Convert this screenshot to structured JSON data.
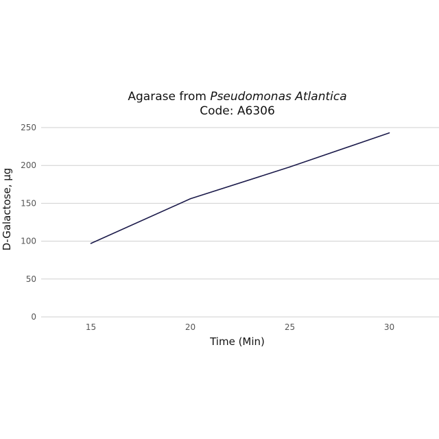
{
  "chart_data": {
    "type": "line",
    "title_line1_prefix": "Agarase from ",
    "title_line1_italic": "Pseudomonas Atlantica",
    "title_line2": "Code: A6306",
    "xlabel": "Time (Min)",
    "ylabel": "D-Galactose, µg",
    "x": [
      15,
      20,
      25,
      30
    ],
    "series": [
      {
        "values": [
          97,
          156,
          198,
          243
        ]
      }
    ],
    "x_ticks": [
      "15",
      "20",
      "25",
      "30"
    ],
    "y_ticks": [
      "0",
      "50",
      "100",
      "150",
      "200",
      "250"
    ],
    "xlim": [
      12.5,
      32.5
    ],
    "ylim": [
      0,
      250
    ],
    "grid": "horizontal",
    "line_color": "#1b1a4a"
  }
}
